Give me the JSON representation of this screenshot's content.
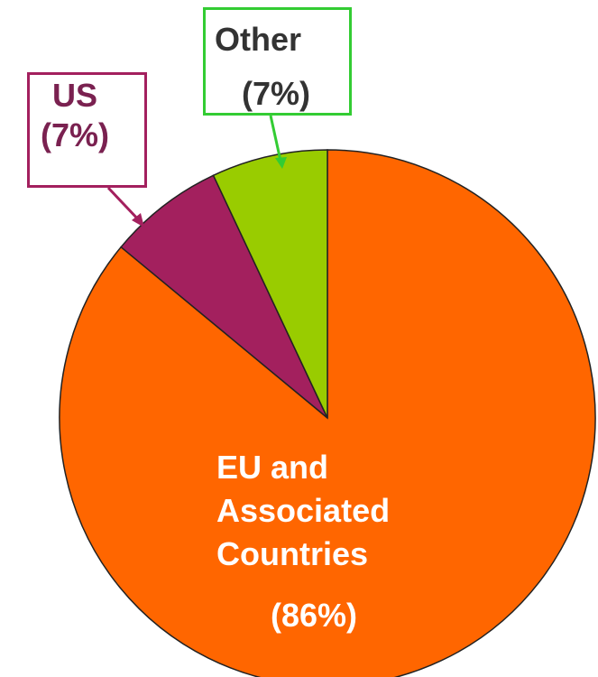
{
  "chart_data": {
    "type": "pie",
    "categories": [
      "EU and Associated Countries",
      "US",
      "Other"
    ],
    "values": [
      86,
      7,
      7
    ],
    "value_labels": [
      "(86%)",
      "(7%)",
      "(7%)"
    ],
    "colors": [
      "#ff6600",
      "#a3205e",
      "#99cc00"
    ]
  }
}
